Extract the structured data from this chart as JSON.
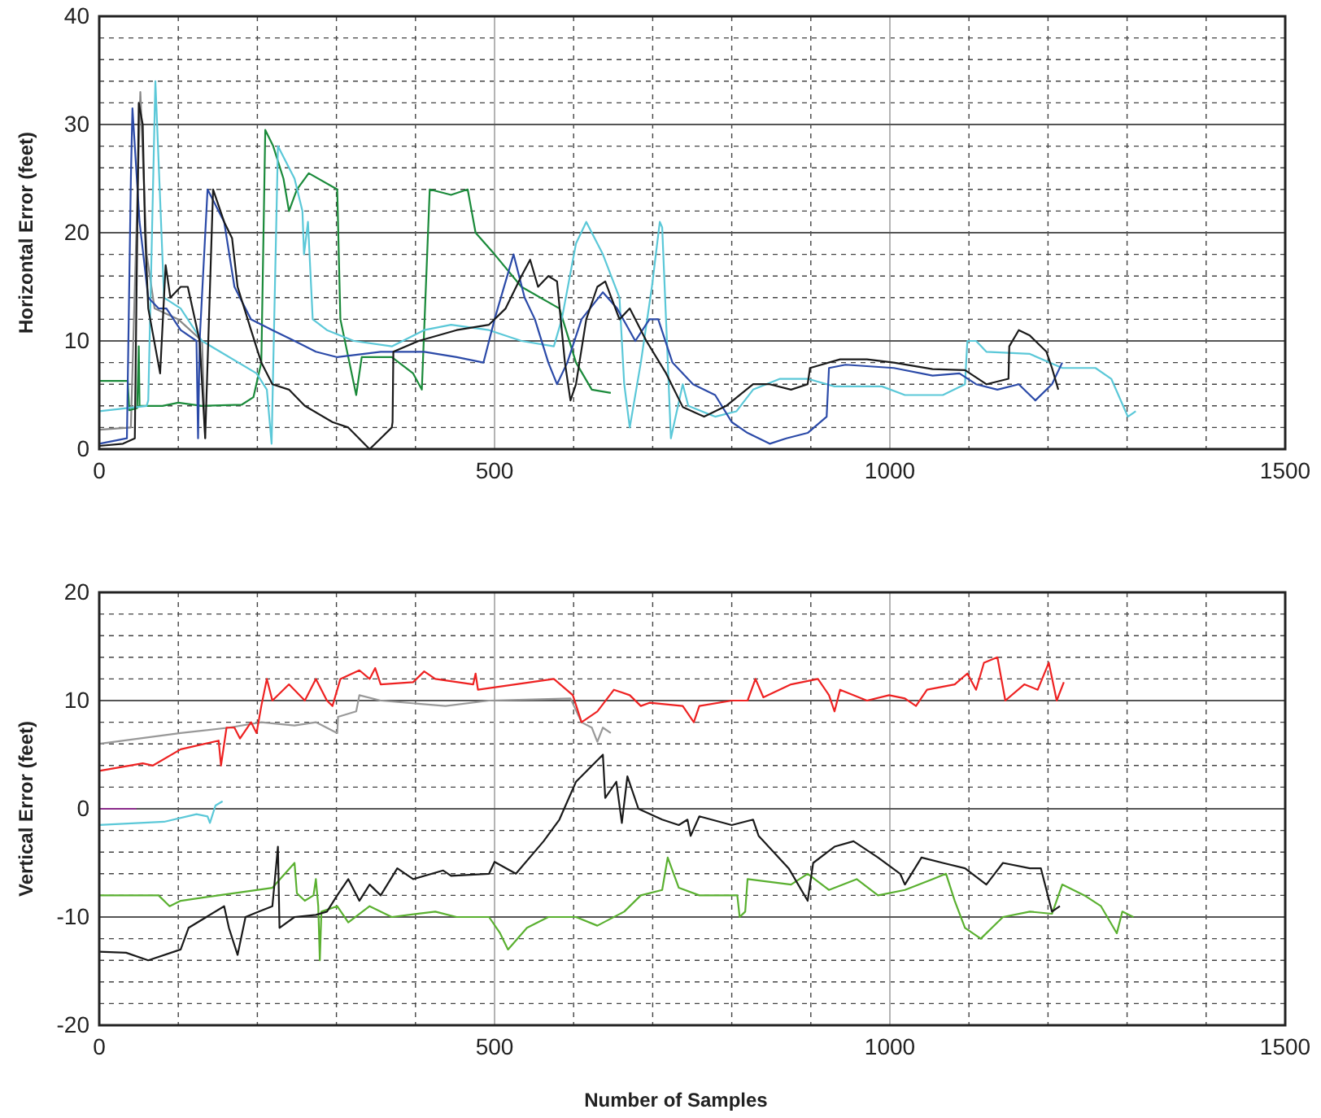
{
  "chart_data": [
    {
      "type": "line",
      "ylabel": "Horizontal Error (feet)",
      "xlim": [
        0,
        1500
      ],
      "xticks": [
        0,
        500,
        1000,
        1500
      ],
      "ylim": [
        0,
        40
      ],
      "yticks": [
        0,
        10,
        20,
        30,
        40
      ],
      "grid": true,
      "line_style": "solid",
      "series": [
        {
          "color": "#888888",
          "x": [
            0,
            40,
            52,
            60,
            70,
            100,
            130,
            134
          ],
          "values": [
            1.8,
            2,
            33,
            18,
            13,
            12,
            10,
            1
          ]
        },
        {
          "color": "#1a8a3a",
          "x": [
            0,
            36,
            38,
            48,
            50,
            51,
            80,
            100,
            130,
            180,
            195,
            205,
            210,
            220,
            233,
            240,
            250,
            265,
            301,
            305,
            325,
            332,
            370,
            397,
            408,
            418,
            445,
            466,
            476,
            500,
            534,
            582,
            603,
            623,
            647
          ],
          "values": [
            6.3,
            6.3,
            3.6,
            3.8,
            9.5,
            4,
            4,
            4.3,
            4,
            4.1,
            4.8,
            8,
            29.5,
            28,
            25,
            22,
            24,
            25.5,
            24,
            12,
            5,
            8.5,
            8.5,
            7,
            5.5,
            24,
            23.5,
            24,
            20,
            18,
            15,
            13,
            8,
            5.5,
            5.2
          ]
        },
        {
          "color": "#5bc8d8",
          "x": [
            0,
            60,
            62,
            71,
            82,
            103,
            130,
            199,
            212,
            218,
            226,
            247,
            257,
            259,
            264,
            270,
            288,
            322,
            370,
            411,
            445,
            493,
            534,
            575,
            585,
            603,
            616,
            637,
            658,
            664,
            671,
            685,
            699,
            709,
            712,
            718,
            723,
            738,
            745,
            779,
            806,
            827,
            861,
            896,
            930,
            990,
            1019,
            1067,
            1095,
            1098,
            1109,
            1122,
            1177,
            1218,
            1260,
            1280,
            1301,
            1311
          ],
          "values": [
            3.5,
            4,
            4.5,
            34,
            14,
            13,
            10,
            7,
            5.5,
            0.5,
            28,
            25,
            22,
            18,
            21,
            12,
            11,
            10,
            9.5,
            11,
            11.5,
            11,
            10,
            9.5,
            12,
            19,
            21,
            18,
            14,
            6,
            2,
            8,
            15,
            21,
            20.5,
            10,
            1,
            6,
            4,
            3,
            3.5,
            5.5,
            6.5,
            6.5,
            5.8,
            5.8,
            5,
            5,
            6,
            10,
            10,
            9,
            8.8,
            7.5,
            7.5,
            6.5,
            3,
            3.5
          ]
        },
        {
          "color": "#2b4aa8",
          "x": [
            0,
            35,
            40,
            42,
            51,
            62,
            75,
            85,
            103,
            123,
            125,
            127,
            137,
            158,
            171,
            192,
            219,
            247,
            274,
            301,
            356,
            411,
            452,
            486,
            500,
            524,
            538,
            551,
            568,
            579,
            592,
            610,
            637,
            655,
            678,
            696,
            707,
            725,
            751,
            779,
            800,
            820,
            848,
            869,
            896,
            920,
            923,
            944,
            1005,
            1054,
            1088,
            1109,
            1136,
            1163,
            1184,
            1205,
            1218
          ],
          "values": [
            0.5,
            1,
            25,
            31.5,
            21,
            14,
            13,
            13,
            11,
            10,
            1,
            10,
            24,
            21,
            15,
            12,
            11,
            10,
            9,
            8.5,
            9,
            9,
            8.5,
            8,
            12,
            18,
            14,
            12,
            8,
            6,
            8,
            12,
            14.5,
            13,
            10,
            12,
            12,
            8,
            6,
            5,
            2.5,
            1.5,
            0.5,
            1,
            1.5,
            3,
            7.5,
            7.8,
            7.5,
            6.8,
            7,
            6,
            5.5,
            6,
            4.5,
            6,
            8
          ]
        },
        {
          "color": "#1a1a1a",
          "x": [
            0,
            30,
            45,
            50,
            55,
            58,
            62,
            77,
            84,
            90,
            103,
            112,
            127,
            134,
            144,
            158,
            168,
            175,
            192,
            205,
            219,
            240,
            260,
            295,
            315,
            342,
            356,
            370,
            371,
            372,
            404,
            452,
            493,
            514,
            534,
            545,
            555,
            568,
            579,
            589,
            596,
            603,
            616,
            630,
            640,
            658,
            671,
            692,
            717,
            738,
            765,
            793,
            827,
            848,
            875,
            896,
            899,
            937,
            971,
            1005,
            1054,
            1095,
            1122,
            1150,
            1151,
            1163,
            1177,
            1198,
            1205,
            1213
          ],
          "values": [
            0.3,
            0.5,
            1,
            32,
            30,
            20,
            13,
            7,
            17,
            14,
            15,
            15,
            10,
            1,
            24,
            21,
            19.5,
            15,
            11,
            8,
            6,
            5.5,
            4,
            2.5,
            2,
            0,
            1,
            2,
            2.5,
            9,
            10,
            11,
            11.5,
            13,
            16,
            17.5,
            15,
            16,
            15.5,
            8,
            4.5,
            6,
            12,
            15,
            15.5,
            12,
            13,
            10,
            7,
            3.9,
            3,
            4,
            6,
            6,
            5.5,
            6,
            7.5,
            8.3,
            8.3,
            8,
            7.4,
            7.3,
            6,
            6.5,
            9.5,
            11,
            10.5,
            9,
            7.5,
            5.5
          ]
        }
      ]
    },
    {
      "type": "line",
      "xlabel": "Number of Samples",
      "ylabel": "Vertical Error (feet)",
      "xlim": [
        0,
        1500
      ],
      "xticks": [
        0,
        500,
        1000,
        1500
      ],
      "ylim": [
        -20,
        20
      ],
      "yticks": [
        -20,
        -10,
        0,
        10,
        20
      ],
      "grid": true,
      "line_style": "solid",
      "series": [
        {
          "color": "#8a2a8a",
          "x": [
            0,
            47
          ],
          "values": [
            0,
            0
          ]
        },
        {
          "color": "#5bc8d8",
          "x": [
            0,
            82,
            123,
            137,
            140,
            147,
            156
          ],
          "values": [
            -1.5,
            -1.2,
            -0.5,
            -0.7,
            -1.3,
            0.3,
            0.7
          ]
        },
        {
          "color": "#999999",
          "x": [
            0,
            103,
            164,
            205,
            247,
            274,
            301,
            302,
            325,
            329,
            356,
            438,
            493,
            596,
            610,
            623,
            630,
            637,
            647
          ],
          "values": [
            6,
            7,
            7.5,
            8,
            7.7,
            8,
            7,
            8.5,
            9,
            10.5,
            10,
            9.5,
            10,
            10.2,
            8,
            7.5,
            6.2,
            7.5,
            7
          ]
        },
        {
          "color": "#ee2222",
          "x": [
            0,
            55,
            68,
            103,
            151,
            154,
            161,
            171,
            178,
            192,
            199,
            205,
            212,
            219,
            240,
            260,
            274,
            288,
            295,
            305,
            329,
            342,
            349,
            356,
            397,
            411,
            425,
            473,
            476,
            479,
            575,
            599,
            610,
            630,
            651,
            671,
            685,
            696,
            738,
            752,
            759,
            800,
            820,
            830,
            840,
            875,
            909,
            923,
            930,
            937,
            971,
            999,
            1019,
            1033,
            1047,
            1082,
            1098,
            1109,
            1119,
            1136,
            1146,
            1170,
            1187,
            1201,
            1211,
            1220
          ],
          "values": [
            3.5,
            4.2,
            4,
            5.5,
            6.3,
            4,
            7.5,
            7.5,
            6.5,
            8,
            7,
            9.5,
            12,
            10,
            11.5,
            10,
            12,
            10,
            9.5,
            12,
            12.8,
            12,
            13,
            11.5,
            11.7,
            12.7,
            12,
            11.5,
            12.5,
            11,
            12,
            10.5,
            8,
            9,
            11,
            10.5,
            9.5,
            9.8,
            9.5,
            8,
            9.5,
            10,
            10,
            12,
            10.3,
            11.5,
            12,
            10.5,
            9,
            11,
            10,
            10.5,
            10.2,
            9.5,
            11,
            11.5,
            12.5,
            11,
            13.5,
            14,
            10,
            11.5,
            11,
            13.5,
            10,
            11.7
          ]
        },
        {
          "color": "#5ab030",
          "x": [
            0,
            75,
            89,
            103,
            151,
            219,
            247,
            250,
            260,
            271,
            274,
            277,
            279,
            281,
            301,
            315,
            342,
            370,
            425,
            452,
            493,
            507,
            517,
            541,
            568,
            603,
            630,
            664,
            685,
            712,
            719,
            733,
            759,
            807,
            810,
            817,
            820,
            875,
            896,
            923,
            958,
            985,
            1019,
            1054,
            1071,
            1082,
            1095,
            1115,
            1129,
            1143,
            1177,
            1205,
            1218,
            1246,
            1267,
            1287,
            1294,
            1308
          ],
          "values": [
            -8,
            -8,
            -9,
            -8.5,
            -8,
            -7.3,
            -5,
            -7.8,
            -8.5,
            -8,
            -6.5,
            -9,
            -14,
            -9.5,
            -9,
            -10.5,
            -9,
            -10,
            -9.5,
            -10,
            -10,
            -11.5,
            -13,
            -11,
            -10,
            -10,
            -10.8,
            -9.5,
            -8,
            -7.5,
            -4.5,
            -7.3,
            -8,
            -8,
            -10,
            -9.5,
            -6.5,
            -7,
            -6,
            -7.5,
            -6.5,
            -8,
            -7.5,
            -6.5,
            -6,
            -8.5,
            -11,
            -12,
            -11,
            -10,
            -9.5,
            -9.7,
            -7,
            -8,
            -9,
            -11.5,
            -9.5,
            -10
          ]
        },
        {
          "color": "#1a1a1a",
          "x": [
            0,
            34,
            62,
            103,
            113,
            158,
            164,
            175,
            185,
            202,
            219,
            226,
            228,
            247,
            274,
            288,
            301,
            315,
            329,
            342,
            356,
            377,
            397,
            435,
            445,
            493,
            500,
            527,
            562,
            582,
            603,
            637,
            640,
            654,
            661,
            668,
            682,
            712,
            733,
            744,
            748,
            759,
            800,
            827,
            834,
            872,
            896,
            903,
            930,
            954,
            985,
            1013,
            1019,
            1040,
            1067,
            1095,
            1122,
            1143,
            1177,
            1191,
            1205,
            1215
          ],
          "values": [
            -13.2,
            -13.3,
            -14,
            -13,
            -11,
            -9,
            -11,
            -13.5,
            -10,
            -9.5,
            -9,
            -3.5,
            -11,
            -10,
            -9.8,
            -9.5,
            -8,
            -6.5,
            -8.5,
            -7,
            -8,
            -5.5,
            -6.5,
            -5.7,
            -6.2,
            -6,
            -4.9,
            -6,
            -3,
            -1,
            2.5,
            5,
            1,
            2.5,
            -1.3,
            3,
            0,
            -1,
            -1.5,
            -1,
            -2.5,
            -0.7,
            -1.5,
            -1,
            -2.5,
            -5.5,
            -8.5,
            -5,
            -3.5,
            -3,
            -4.5,
            -6,
            -7,
            -4.5,
            -5,
            -5.5,
            -7,
            -5,
            -5.5,
            -5.5,
            -9.5,
            -9
          ]
        }
      ]
    }
  ]
}
